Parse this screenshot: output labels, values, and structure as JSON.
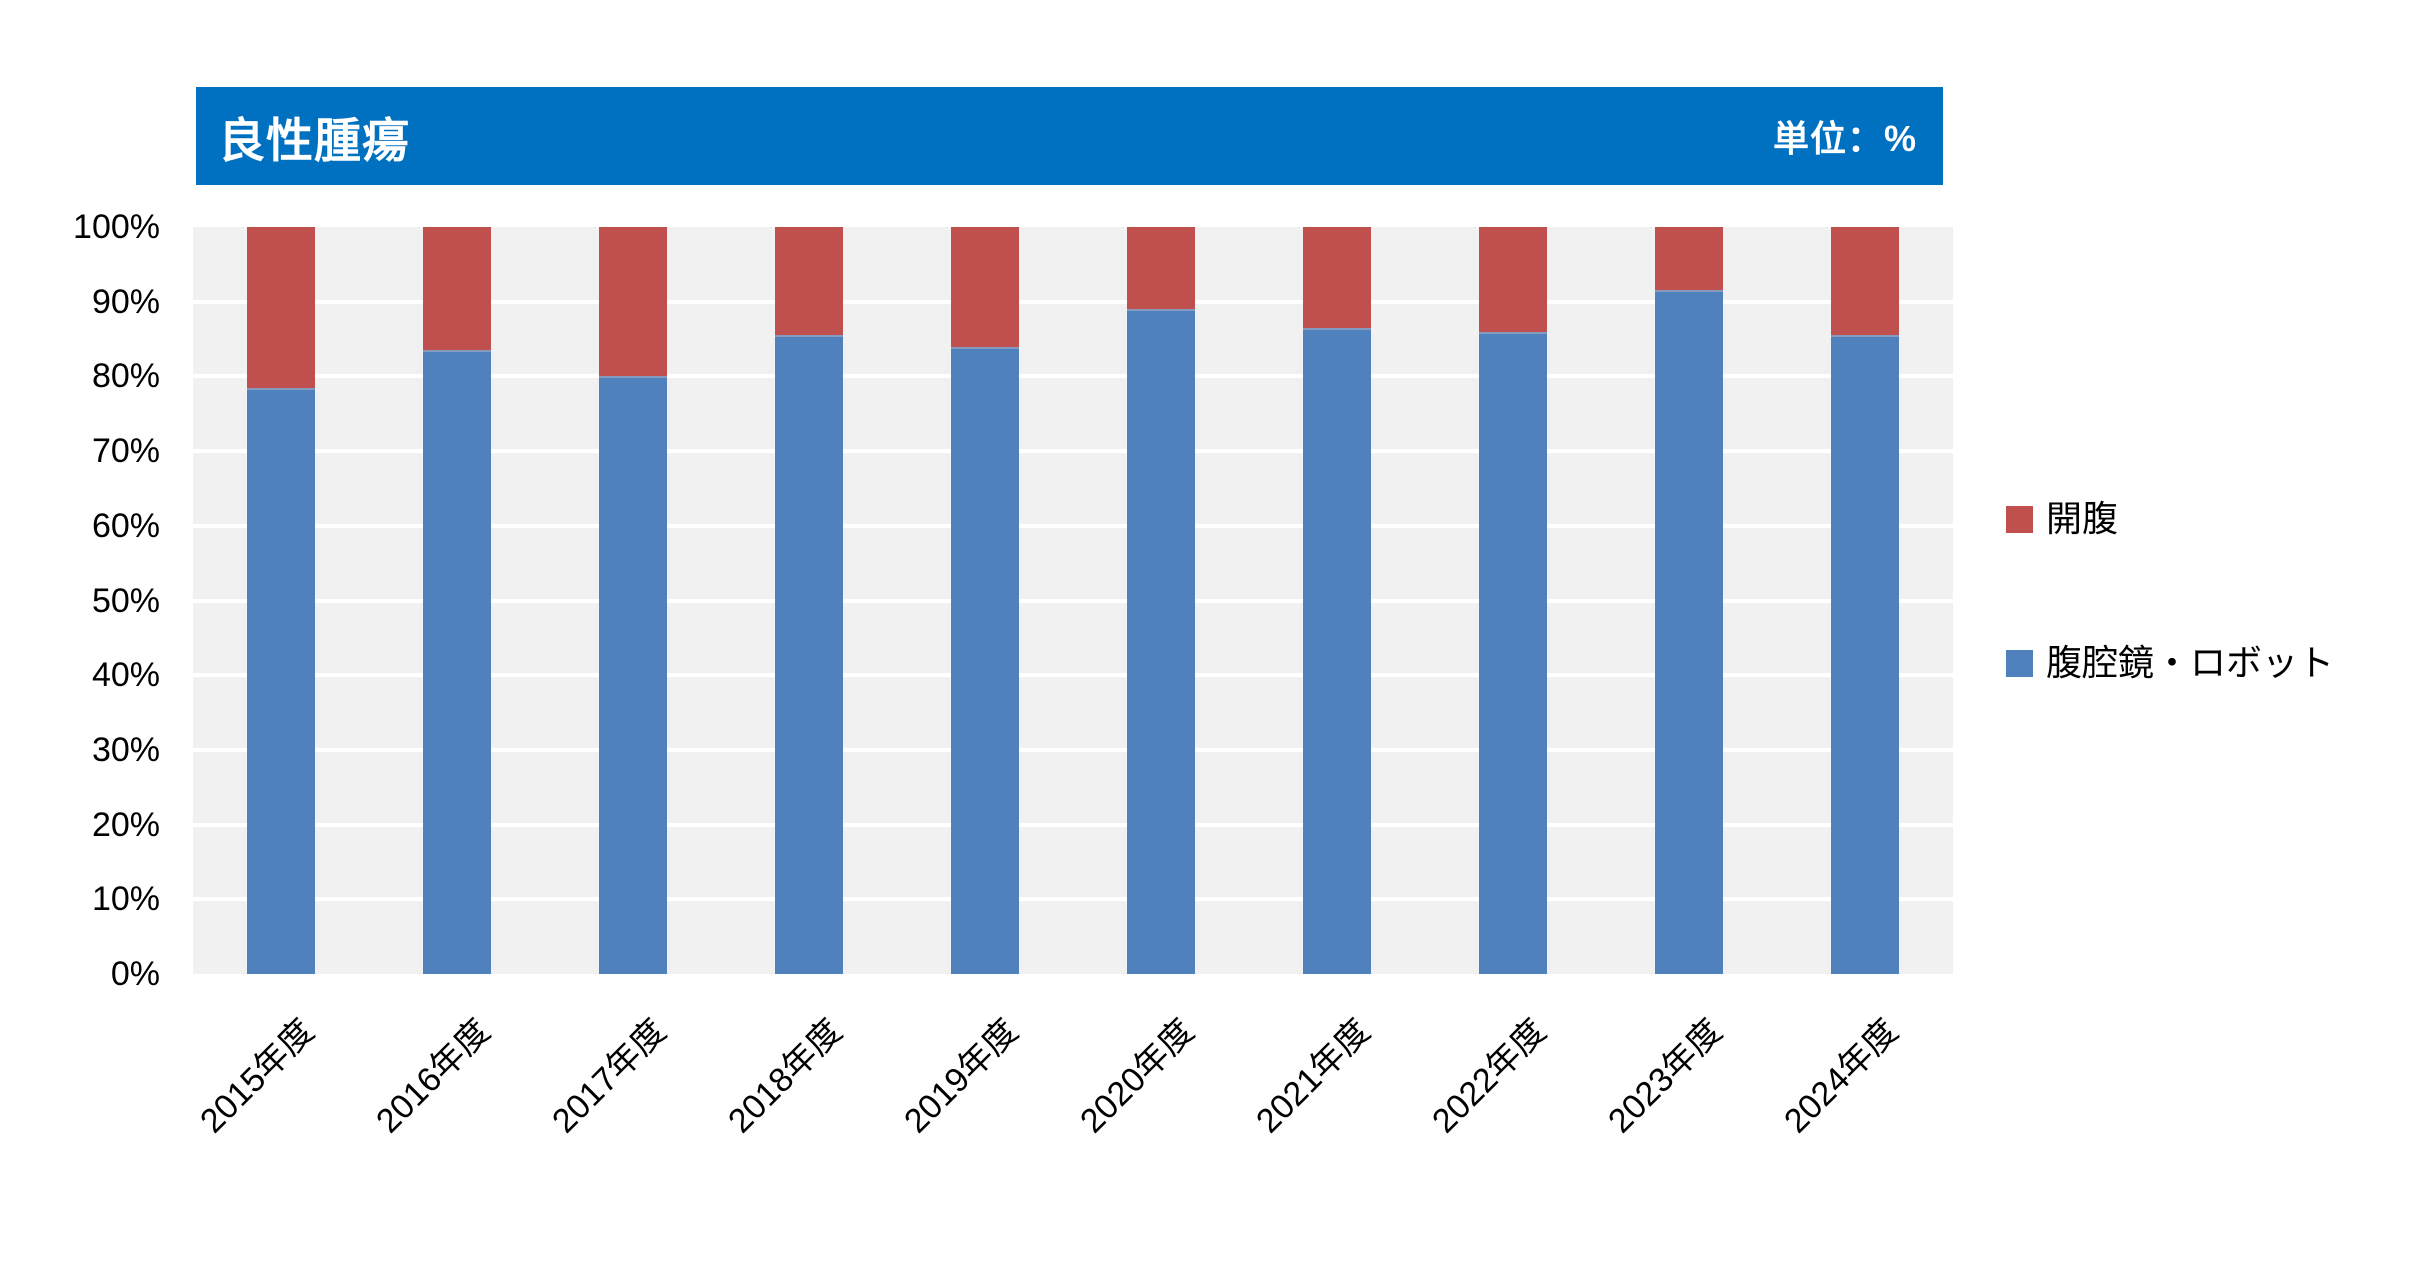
{
  "header": {
    "title": "良性腫瘍",
    "unit_label": "単位：%"
  },
  "colors": {
    "header_bg": "#0070C0",
    "header_text": "#FFFFFF",
    "plot_bg": "#F1F1F1",
    "gridline": "#FFFFFF",
    "open_surgery_red": "#C0504D",
    "laparoscopy_blue": "#4F81BD",
    "axis_text": "#000000"
  },
  "chart_data": {
    "type": "bar",
    "stacked": true,
    "stack_total": 100,
    "title": "良性腫瘍",
    "unit": "%",
    "xlabel": "",
    "ylabel": "",
    "ylim": [
      0,
      100
    ],
    "ytick_step": 10,
    "yticks": [
      "0%",
      "10%",
      "20%",
      "30%",
      "40%",
      "50%",
      "60%",
      "70%",
      "80%",
      "90%",
      "100%"
    ],
    "grid": true,
    "legend_position": "right",
    "categories": [
      "2015年度",
      "2016年度",
      "2017年度",
      "2018年度",
      "2019年度",
      "2020年度",
      "2021年度",
      "2022年度",
      "2023年度",
      "2024年度"
    ],
    "series": [
      {
        "name": "開腹",
        "color": "#C0504D",
        "values": [
          21.5,
          16.5,
          20.0,
          14.5,
          16.0,
          11.0,
          13.5,
          14.0,
          8.5,
          14.5
        ]
      },
      {
        "name": "腹腔鏡・ロボット",
        "color": "#4F81BD",
        "values": [
          78.5,
          83.5,
          80.0,
          85.5,
          84.0,
          89.0,
          86.5,
          86.0,
          91.5,
          85.5
        ]
      }
    ],
    "legend": [
      {
        "label": "開腹",
        "color": "#C0504D"
      },
      {
        "label": "腹腔鏡・ロボット",
        "color": "#4F81BD"
      }
    ]
  }
}
